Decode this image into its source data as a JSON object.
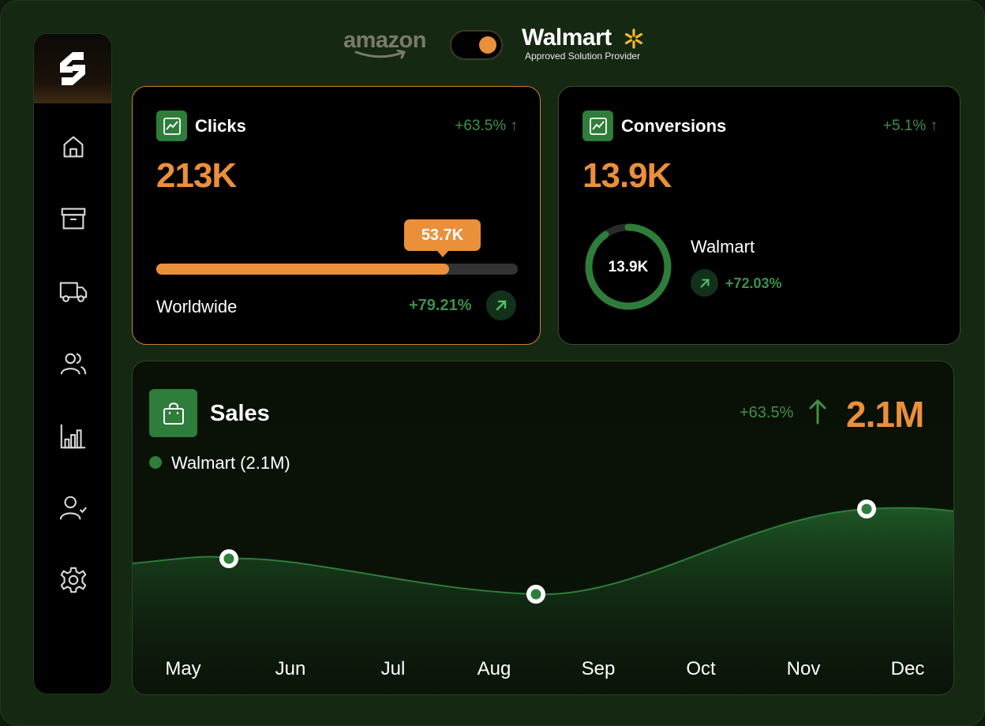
{
  "brand": {
    "left_logo_text": "amazon",
    "right_logo_text": "Walmart",
    "right_logo_sub": "Approved Solution Provider",
    "toggle_state": "on"
  },
  "sidebar": {
    "items": [
      {
        "icon": "home-icon"
      },
      {
        "icon": "archive-icon"
      },
      {
        "icon": "truck-icon"
      },
      {
        "icon": "users-icon"
      },
      {
        "icon": "bar-chart-icon"
      },
      {
        "icon": "user-check-icon"
      },
      {
        "icon": "gear-icon"
      }
    ]
  },
  "clicks": {
    "title": "Clicks",
    "delta": "+63.5% ↑",
    "value": "213K",
    "tooltip": "53.7K",
    "progress": 0.81,
    "region": "Worldwide",
    "region_delta": "+79.21%"
  },
  "conversions": {
    "title": "Conversions",
    "delta": "+5.1% ↑",
    "value": "13.9K",
    "donut_label": "13.9K",
    "donut_fraction": 0.9,
    "store": "Walmart",
    "store_delta": "+72.03%"
  },
  "sales": {
    "title": "Sales",
    "delta": "+63.5%",
    "total": "2.1M",
    "legend": "Walmart (2.1M)",
    "months": [
      "May",
      "Jun",
      "Jul",
      "Aug",
      "Sep",
      "Oct",
      "Nov",
      "Dec"
    ]
  },
  "colors": {
    "accent": "#ea8f3a",
    "green": "#2e7d3a",
    "positive": "#3f8f48"
  }
}
